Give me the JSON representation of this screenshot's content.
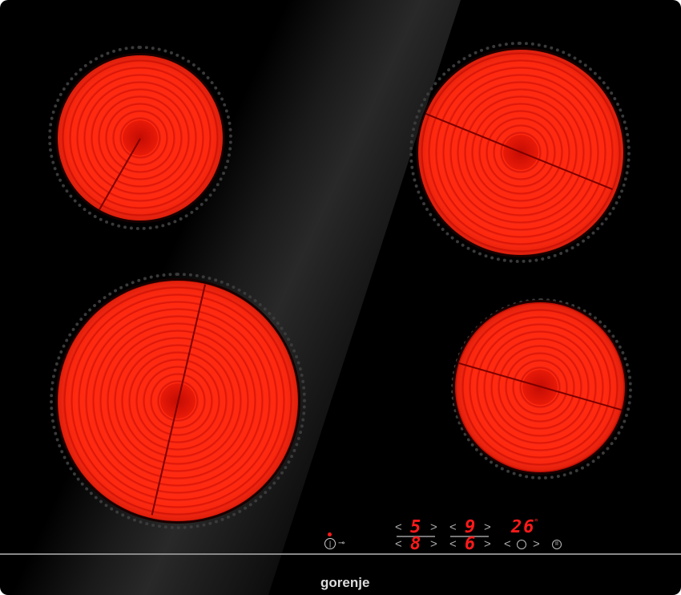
{
  "brand": "gorenje",
  "colors": {
    "burner": "#ff2a10",
    "display": "#ff1a1a",
    "glass": "#000000"
  },
  "zones": [
    {
      "name": "front-left",
      "level": "5"
    },
    {
      "name": "rear-left",
      "level": "8"
    },
    {
      "name": "rear-right",
      "level": "9"
    },
    {
      "name": "front-right",
      "level": "6"
    }
  ],
  "timer": {
    "value": "26",
    "unit": "°"
  },
  "controls": {
    "prev": "<",
    "next": ">",
    "power_icon": "power-icon",
    "lock_icon": "key-lock-icon",
    "timer_icon": "clock-icon",
    "pause_icon": "pause-icon"
  }
}
